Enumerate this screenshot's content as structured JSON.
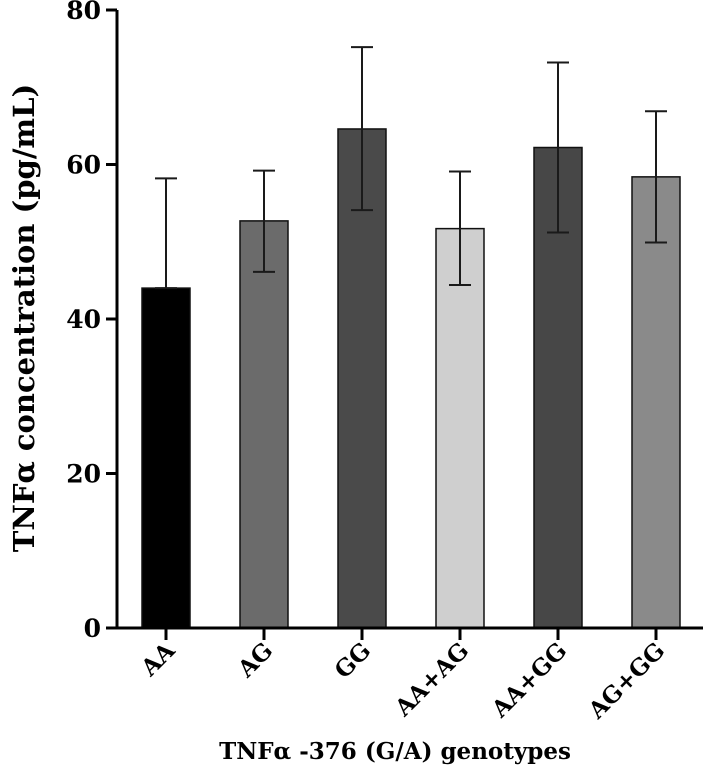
{
  "chart_data": {
    "type": "bar",
    "title": "",
    "xlabel": "TNFα -376 (G/A) genotypes",
    "ylabel": "TNFα concentration (pg/mL)",
    "categories": [
      "AA",
      "AG",
      "GG",
      "AA+AG",
      "AA+GG",
      "AG+GG"
    ],
    "values": [
      44,
      52.7,
      64.6,
      51.7,
      62.2,
      58.4
    ],
    "error_upper": [
      58.2,
      59.2,
      75.2,
      59.1,
      73.2,
      66.9
    ],
    "error_lower": [
      44,
      46.1,
      54.1,
      44.4,
      51.2,
      49.9
    ],
    "bar_colors": [
      "#000000",
      "#6b6b6b",
      "#4a4a4a",
      "#cfcfcf",
      "#474747",
      "#8a8a8a"
    ],
    "ylim": [
      0,
      80
    ],
    "yticks": [
      0,
      20,
      40,
      60,
      80
    ],
    "grid": false,
    "legend": "none"
  }
}
